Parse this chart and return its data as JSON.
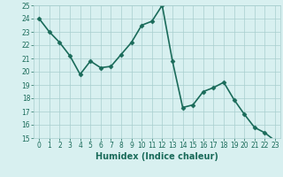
{
  "x": [
    0,
    1,
    2,
    3,
    4,
    5,
    6,
    7,
    8,
    9,
    10,
    11,
    12,
    13,
    14,
    15,
    16,
    17,
    18,
    19,
    20,
    21,
    22,
    23
  ],
  "y": [
    24,
    23,
    22.2,
    21.2,
    19.8,
    20.8,
    20.3,
    20.4,
    21.3,
    22.2,
    23.5,
    23.8,
    25,
    20.8,
    17.3,
    17.5,
    18.5,
    18.8,
    19.2,
    17.9,
    16.8,
    15.8,
    15.4,
    14.8
  ],
  "line_color": "#1a6b5a",
  "marker": "D",
  "marker_color": "#1a6b5a",
  "bg_color": "#d8f0f0",
  "grid_color": "#a8cece",
  "xlabel": "Humidex (Indice chaleur)",
  "ylim": [
    15,
    25
  ],
  "xlim": [
    -0.5,
    23.5
  ],
  "yticks": [
    15,
    16,
    17,
    18,
    19,
    20,
    21,
    22,
    23,
    24,
    25
  ],
  "xticks": [
    0,
    1,
    2,
    3,
    4,
    5,
    6,
    7,
    8,
    9,
    10,
    11,
    12,
    13,
    14,
    15,
    16,
    17,
    18,
    19,
    20,
    21,
    22,
    23
  ],
  "tick_fontsize": 5.5,
  "label_fontsize": 7,
  "linewidth": 1.2,
  "markersize": 2.5
}
